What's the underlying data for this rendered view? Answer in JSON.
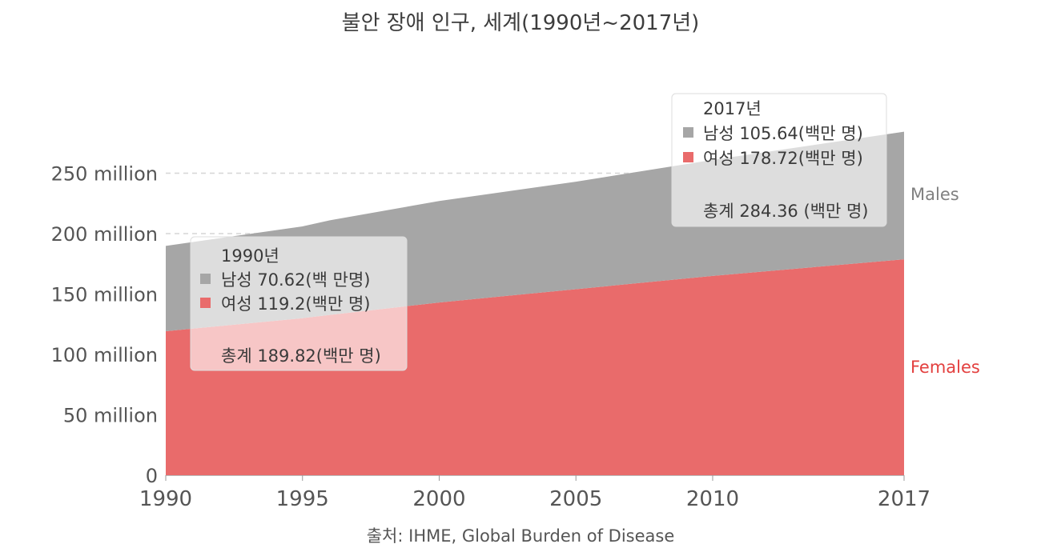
{
  "chart_data": {
    "type": "area",
    "stacked": true,
    "title": "불안 장애 인구, 세계(1990년~2017년)",
    "source": "출처: IHME, Global Burden of Disease",
    "xlabel": "",
    "ylabel": "",
    "xlim": [
      1990,
      2017
    ],
    "ylim": [
      0,
      300000000
    ],
    "x_ticks": [
      1990,
      1995,
      2000,
      2005,
      2010,
      2017
    ],
    "y_ticks": [
      {
        "value": 0,
        "label": "0"
      },
      {
        "value": 50000000,
        "label": "50 million"
      },
      {
        "value": 100000000,
        "label": "100 million"
      },
      {
        "value": 150000000,
        "label": "150 million"
      },
      {
        "value": 200000000,
        "label": "200 million"
      },
      {
        "value": 250000000,
        "label": "250 million"
      }
    ],
    "grid": true,
    "x": [
      1990,
      1995,
      1996,
      2000,
      2005,
      2010,
      2017
    ],
    "series": [
      {
        "name": "Females",
        "label": "Females",
        "color": "#e96b6b",
        "label_color": "#e3403f",
        "values": [
          119200000,
          130000000,
          132700000,
          143000000,
          154000000,
          165000000,
          178720000
        ]
      },
      {
        "name": "Males",
        "label": "Males",
        "color": "#a6a6a6",
        "label_color": "#808080",
        "values": [
          70620000,
          76000000,
          78300000,
          84000000,
          89000000,
          96000000,
          105640000
        ]
      }
    ],
    "annotations": [
      {
        "year_label": "1990년",
        "male_label": "남성 70.62(백 만명)",
        "female_label": "여성 119.2(백만 명)",
        "total_label": "총계 189.82(백만 명)",
        "male_color": "#a6a6a6",
        "female_color": "#e96b6b"
      },
      {
        "year_label": "2017년",
        "male_label": "남성 105.64(백만 명)",
        "female_label": "여성 178.72(백만 명)",
        "total_label": "총계 284.36 (백만 명)",
        "male_color": "#a6a6a6",
        "female_color": "#e96b6b"
      }
    ]
  }
}
